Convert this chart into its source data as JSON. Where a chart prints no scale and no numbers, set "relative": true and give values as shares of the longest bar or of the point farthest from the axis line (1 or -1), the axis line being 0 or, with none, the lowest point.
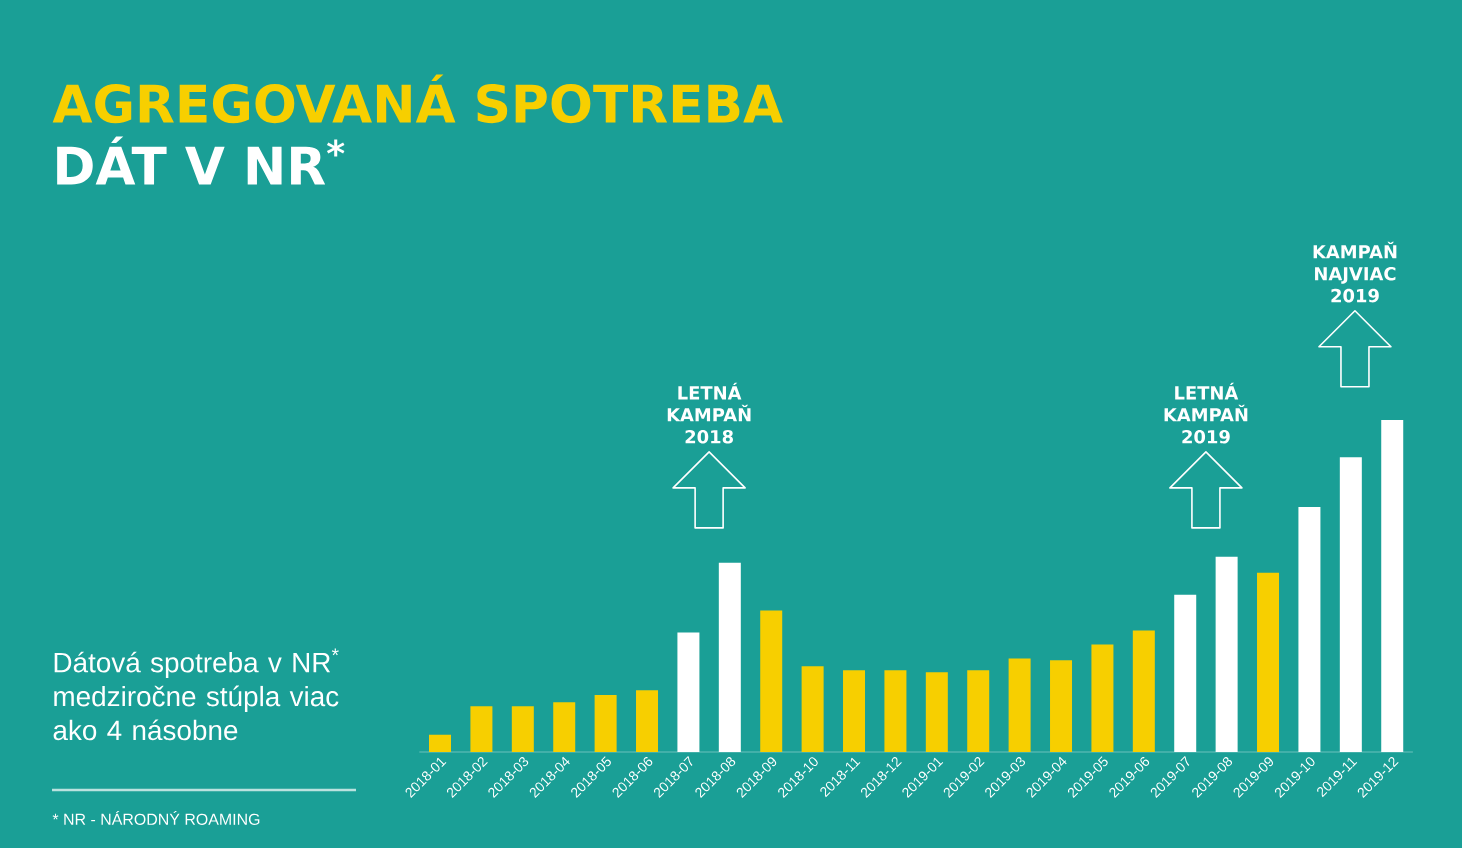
{
  "chart_data": {
    "type": "bar",
    "title": "AGREGOVANÁ SPOTREBA",
    "subtitle": "DÁT V NR$^{*}$",
    "relative": true,
    "categories": [
      "2018-01",
      "2018-02",
      "2018-03",
      "2018-04",
      "2018-05",
      "2018-06",
      "2018-07",
      "2018-08",
      "2018-09",
      "2018-10",
      "2018-11",
      "2018-12",
      "2019-01",
      "2019-02",
      "2019-03",
      "2019-04",
      "2019-05",
      "2019-06",
      "2019-07",
      "2019-08",
      "2019-09",
      "2019-10",
      "2019-11",
      "2019-12"
    ],
    "values": [
      0.052,
      0.138,
      0.138,
      0.15,
      0.172,
      0.186,
      0.36,
      0.57,
      0.426,
      0.258,
      0.246,
      0.246,
      0.24,
      0.246,
      0.282,
      0.276,
      0.324,
      0.366,
      0.474,
      0.588,
      0.54,
      0.738,
      0.888,
      1
    ],
    "colors": [
      "#f7cf00",
      "#f7cf00",
      "#f7cf00",
      "#f7cf00",
      "#f7cf00",
      "#f7cf00",
      "#ffffff",
      "#ffffff",
      "#f7cf00",
      "#f7cf00",
      "#f7cf00",
      "#f7cf00",
      "#f7cf00",
      "#f7cf00",
      "#f7cf00",
      "#f7cf00",
      "#f7cf00",
      "#f7cf00",
      "#ffffff",
      "#ffffff",
      "#f7cf00",
      "#ffffff",
      "#ffffff",
      "#ffffff"
    ],
    "annotations": [
      "LETNÁ KAMPAŇ 2018",
      "LETNÁ KAMPAŇ 2019",
      "KAMPAŇ NAJVIAC 2019",
      "Dátová spotreba v NR$^{*}$ medziročne stúpla viac ako 4 násobne",
      "* NR - NÁRODNÝ ROAMING"
    ]
  }
}
